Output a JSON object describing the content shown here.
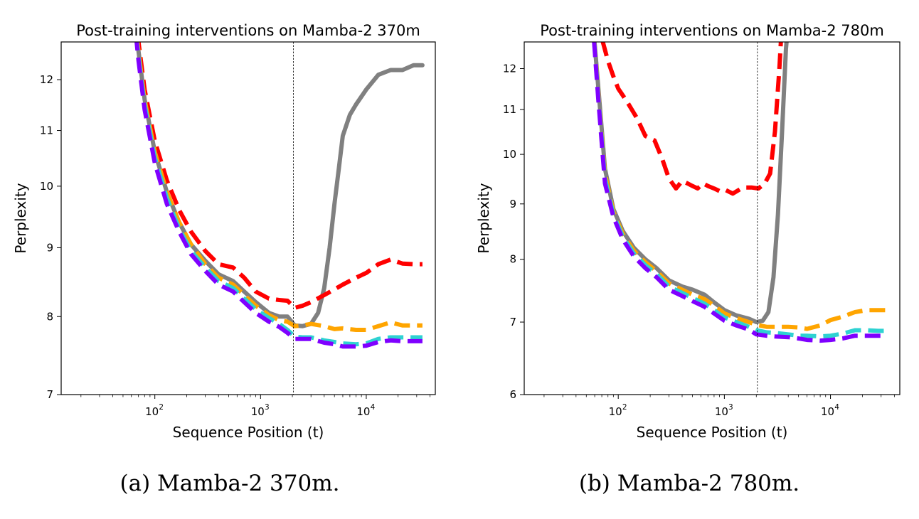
{
  "charts": [
    {
      "caption": "(a) Mamba-2 370m.",
      "chart_data": {
        "type": "line",
        "title": "Post-training interventions on Mamba-2 370m",
        "xlabel": "Sequence Position (t)",
        "ylabel": "Perplexity",
        "xscale": "log",
        "yscale": "log",
        "xlim": [
          13,
          45000
        ],
        "ylim": [
          7,
          12.8
        ],
        "xticks": [
          100,
          1000,
          10000
        ],
        "xtick_labels": [
          "10",
          "10",
          "10"
        ],
        "xtick_exponents": [
          "2",
          "3",
          "4"
        ],
        "yticks": [
          7,
          8,
          9,
          10,
          11,
          12
        ],
        "ytick_labels": [
          "7",
          "8",
          "9",
          "10",
          "11",
          "12"
        ],
        "vline_x": 2048,
        "grid": false,
        "legend": "none",
        "series": [
          {
            "color": "#808080",
            "style": "solid",
            "x": [
              60,
              70,
              80,
              100,
              130,
              170,
              220,
              300,
              400,
              550,
              700,
              900,
              1200,
              1500,
              1800,
              2100,
              2500,
              3000,
              3500,
              4000,
              4500,
              5000,
              5500,
              6000,
              7000,
              8000,
              10000,
              13000,
              17000,
              22000,
              28000,
              34000
            ],
            "y": [
              14,
              12.6,
              11.6,
              10.6,
              9.9,
              9.4,
              9.05,
              8.8,
              8.6,
              8.5,
              8.35,
              8.2,
              8.05,
              8.0,
              8.0,
              7.88,
              7.87,
              7.9,
              8.05,
              8.4,
              9.0,
              9.7,
              10.3,
              10.9,
              11.3,
              11.5,
              11.8,
              12.1,
              12.2,
              12.2,
              12.3,
              12.3
            ]
          },
          {
            "color": "#ff0000",
            "style": "dashed",
            "x": [
              60,
              70,
              80,
              100,
              130,
              170,
              220,
              300,
              400,
              550,
              700,
              900,
              1200,
              1500,
              1800,
              2100,
              2500,
              3000,
              4000,
              5000,
              6000,
              8000,
              10000,
              13000,
              17000,
              22000,
              28000,
              34000
            ],
            "y": [
              14,
              12.8,
              11.8,
              10.8,
              10.1,
              9.6,
              9.25,
              8.95,
              8.75,
              8.7,
              8.55,
              8.35,
              8.25,
              8.23,
              8.22,
              8.12,
              8.15,
              8.2,
              8.3,
              8.38,
              8.45,
              8.55,
              8.62,
              8.75,
              8.82,
              8.76,
              8.75,
              8.75
            ]
          },
          {
            "color": "#ffa500",
            "style": "dashed",
            "x": [
              60,
              70,
              80,
              100,
              130,
              170,
              220,
              300,
              400,
              550,
              700,
              900,
              1200,
              1500,
              1800,
              2100,
              2500,
              3000,
              4000,
              5000,
              6000,
              8000,
              10000,
              13000,
              17000,
              22000,
              28000,
              34000
            ],
            "y": [
              14,
              12.6,
              11.6,
              10.6,
              9.9,
              9.4,
              9.05,
              8.75,
              8.55,
              8.45,
              8.3,
              8.15,
              8.02,
              7.95,
              7.93,
              7.87,
              7.88,
              7.9,
              7.87,
              7.83,
              7.84,
              7.82,
              7.82,
              7.87,
              7.92,
              7.88,
              7.88,
              7.88
            ]
          },
          {
            "color": "#2ed2d2",
            "style": "dashed",
            "x": [
              60,
              70,
              80,
              100,
              130,
              170,
              220,
              300,
              400,
              550,
              700,
              900,
              1200,
              1500,
              1800,
              2100,
              2500,
              3000,
              4000,
              5000,
              6000,
              8000,
              10000,
              13000,
              17000,
              22000,
              28000,
              34000
            ],
            "y": [
              14,
              12.5,
              11.5,
              10.5,
              9.8,
              9.3,
              8.95,
              8.7,
              8.5,
              8.4,
              8.25,
              8.1,
              7.98,
              7.9,
              7.82,
              7.73,
              7.72,
              7.72,
              7.68,
              7.66,
              7.64,
              7.63,
              7.64,
              7.7,
              7.72,
              7.72,
              7.72,
              7.72
            ]
          },
          {
            "color": "#7f00ff",
            "style": "dashed",
            "x": [
              60,
              70,
              80,
              100,
              130,
              170,
              220,
              300,
              400,
              550,
              700,
              900,
              1200,
              1500,
              1800,
              2100,
              2500,
              3000,
              4000,
              5000,
              6000,
              8000,
              10000,
              13000,
              17000,
              22000,
              28000,
              34000
            ],
            "y": [
              14,
              12.4,
              11.4,
              10.4,
              9.7,
              9.25,
              8.9,
              8.65,
              8.45,
              8.35,
              8.2,
              8.05,
              7.93,
              7.86,
              7.78,
              7.7,
              7.7,
              7.7,
              7.65,
              7.63,
              7.6,
              7.6,
              7.61,
              7.66,
              7.68,
              7.67,
              7.67,
              7.67
            ]
          }
        ]
      }
    },
    {
      "caption": "(b) Mamba-2 780m.",
      "chart_data": {
        "type": "line",
        "title": "Post-training interventions on Mamba-2 780m",
        "xlabel": "Sequence Position (t)",
        "ylabel": "Perplexity",
        "xscale": "log",
        "yscale": "log",
        "xlim": [
          13,
          45000
        ],
        "ylim": [
          6,
          12.7
        ],
        "xticks": [
          100,
          1000,
          10000
        ],
        "xtick_labels": [
          "10",
          "10",
          "10"
        ],
        "xtick_exponents": [
          "2",
          "3",
          "4"
        ],
        "yticks": [
          6,
          7,
          8,
          9,
          10,
          11,
          12
        ],
        "ytick_labels": [
          "6",
          "7",
          "8",
          "9",
          "10",
          "11",
          "12"
        ],
        "vline_x": 2048,
        "grid": false,
        "legend": "none",
        "series": [
          {
            "color": "#808080",
            "style": "solid",
            "x": [
              55,
              65,
              75,
              90,
              110,
              140,
              180,
              230,
              300,
              400,
              500,
              650,
              800,
              1000,
              1300,
              1700,
              2000,
              2300,
              2600,
              2900,
              3200,
              3500,
              3800,
              4200
            ],
            "y": [
              14,
              11.5,
              9.7,
              8.9,
              8.5,
              8.2,
              8.0,
              7.85,
              7.65,
              7.55,
              7.5,
              7.42,
              7.3,
              7.18,
              7.1,
              7.05,
              7.0,
              7.02,
              7.15,
              7.7,
              8.8,
              10.5,
              12.5,
              14
            ]
          },
          {
            "color": "#ff0000",
            "style": "dashed",
            "x": [
              60,
              70,
              80,
              90,
              100,
              120,
              150,
              180,
              220,
              260,
              300,
              350,
              400,
              450,
              500,
              560,
              630,
              700,
              800,
              900,
              1000,
              1200,
              1500,
              1800,
              2100,
              2400,
              2700,
              3000,
              3300,
              3600
            ],
            "y": [
              14,
              12.8,
              12.2,
              11.8,
              11.5,
              11.2,
              10.8,
              10.4,
              10.3,
              9.9,
              9.5,
              9.3,
              9.45,
              9.4,
              9.35,
              9.3,
              9.4,
              9.35,
              9.3,
              9.25,
              9.28,
              9.2,
              9.32,
              9.32,
              9.3,
              9.4,
              9.6,
              10.5,
              12.0,
              14
            ]
          },
          {
            "color": "#ffa500",
            "style": "dashed",
            "x": [
              55,
              65,
              75,
              90,
              110,
              140,
              180,
              230,
              300,
              400,
              500,
              650,
              800,
              1000,
              1300,
              1700,
              2000,
              2500,
              3000,
              4000,
              5000,
              6000,
              8000,
              10000,
              13000,
              17000,
              22000,
              28000,
              34000
            ],
            "y": [
              14,
              11.4,
              9.6,
              8.85,
              8.45,
              8.15,
              7.95,
              7.8,
              7.6,
              7.5,
              7.42,
              7.35,
              7.25,
              7.13,
              7.06,
              7.0,
              6.96,
              6.93,
              6.93,
              6.93,
              6.92,
              6.9,
              6.95,
              7.03,
              7.08,
              7.15,
              7.18,
              7.18,
              7.18
            ]
          },
          {
            "color": "#2ed2d2",
            "style": "dashed",
            "x": [
              55,
              65,
              75,
              90,
              110,
              140,
              180,
              230,
              300,
              400,
              500,
              650,
              800,
              1000,
              1300,
              1700,
              2000,
              2500,
              3000,
              4000,
              5000,
              6000,
              8000,
              10000,
              13000,
              17000,
              22000,
              28000,
              34000
            ],
            "y": [
              14,
              11.3,
              9.5,
              8.8,
              8.4,
              8.1,
              7.9,
              7.75,
              7.55,
              7.45,
              7.37,
              7.28,
              7.18,
              7.07,
              7.0,
              6.93,
              6.88,
              6.85,
              6.84,
              6.82,
              6.8,
              6.8,
              6.79,
              6.8,
              6.83,
              6.88,
              6.88,
              6.87,
              6.87
            ]
          },
          {
            "color": "#7f00ff",
            "style": "dashed",
            "x": [
              55,
              65,
              75,
              90,
              110,
              140,
              180,
              230,
              300,
              400,
              500,
              650,
              800,
              1000,
              1300,
              1700,
              2000,
              2500,
              3000,
              4000,
              5000,
              6000,
              8000,
              10000,
              13000,
              17000,
              22000,
              28000,
              34000
            ],
            "y": [
              14,
              11.2,
              9.4,
              8.75,
              8.35,
              8.05,
              7.85,
              7.7,
              7.5,
              7.4,
              7.32,
              7.23,
              7.13,
              7.02,
              6.95,
              6.89,
              6.82,
              6.8,
              6.79,
              6.78,
              6.76,
              6.74,
              6.73,
              6.74,
              6.76,
              6.8,
              6.8,
              6.8,
              6.8
            ]
          }
        ]
      }
    }
  ]
}
